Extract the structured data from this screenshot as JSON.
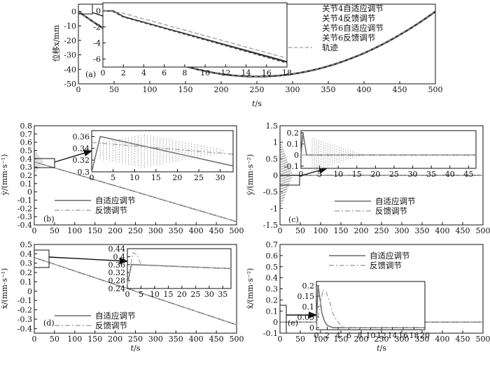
{
  "chart_data": [
    {
      "type": "line",
      "panel_label": "(a)",
      "xlabel_var": "t",
      "xlabel_unit": "/s",
      "ylabel": "位移x/mm",
      "xlim": [
        0,
        500
      ],
      "ylim": [
        -50,
        5
      ],
      "xticks": [
        0,
        50,
        100,
        150,
        200,
        250,
        300,
        350,
        400,
        450,
        500
      ],
      "yticks": [
        0,
        -10,
        -20,
        -30,
        -40,
        -50
      ],
      "legend": [
        "关节4自适应调节",
        "关节4反馈调节",
        "关节6自适应调节",
        "关节6反馈调节",
        "轨迹"
      ],
      "series": [
        {
          "name": "轨迹",
          "x": [
            0,
            25,
            50,
            75,
            100,
            125,
            150,
            175,
            200,
            225,
            250,
            275,
            300,
            325,
            350,
            375,
            400,
            425,
            450,
            475,
            500
          ],
          "values": [
            0,
            -8.55,
            -16.2,
            -22.95,
            -28.8,
            -33.75,
            -37.8,
            -40.95,
            -43.2,
            -44.55,
            -45,
            -44.55,
            -43.2,
            -40.95,
            -37.8,
            -33.75,
            -28.8,
            -22.95,
            -16.2,
            -8.55,
            0
          ]
        }
      ],
      "inset": {
        "xlim": [
          0,
          18
        ],
        "ylim": [
          -7,
          1
        ],
        "xticks": [
          0,
          2,
          4,
          6,
          8,
          10,
          12,
          14,
          16,
          18
        ],
        "yticks": [
          0,
          -2,
          -4,
          -6
        ],
        "series": [
          {
            "name": "关节4自适应调节",
            "x": [
              0,
              1,
              2,
              18
            ],
            "values": [
              0,
              0,
              -0.7,
              -6.4
            ]
          },
          {
            "name": "关节4反馈调节",
            "x": [
              0,
              1,
              2,
              18
            ],
            "values": [
              0,
              -0.1,
              -0.75,
              -6.5
            ]
          },
          {
            "name": "关节6自适应调节",
            "x": [
              0,
              1,
              2,
              18
            ],
            "values": [
              0,
              0,
              -0.72,
              -6.3
            ]
          },
          {
            "name": "关节6反馈调节",
            "x": [
              0,
              1,
              2,
              18
            ],
            "values": [
              0,
              -0.1,
              -0.78,
              -6.45
            ]
          },
          {
            "name": "轨迹",
            "x": [
              0,
              2,
              18
            ],
            "values": [
              0.1,
              -0.3,
              -5.9
            ]
          }
        ]
      }
    },
    {
      "type": "line",
      "panel_label": "(b)",
      "xlabel_var": "",
      "xlabel_unit": "",
      "ylabel": "ẏ/(mm·s⁻¹)",
      "xlim": [
        0,
        500
      ],
      "ylim": [
        -0.4,
        0.8
      ],
      "xticks": [
        0,
        50,
        100,
        150,
        200,
        250,
        300,
        350,
        400,
        450,
        500
      ],
      "yticks": [
        0.8,
        0.7,
        0.6,
        0.5,
        0.4,
        0.3,
        0.2,
        0.1,
        0,
        -0.1,
        -0.2,
        -0.3,
        -0.4
      ],
      "legend": [
        "自适应调节",
        "反馈调节"
      ],
      "series": [
        {
          "name": "自适应调节",
          "x": [
            0,
            2,
            500
          ],
          "values": [
            0.36,
            0.36,
            -0.36
          ]
        },
        {
          "name": "反馈调节",
          "x": [
            0,
            2,
            500
          ],
          "values": [
            0.36,
            0.36,
            -0.36
          ]
        }
      ],
      "inset": {
        "xlim": [
          0,
          33
        ],
        "ylim": [
          0.3,
          0.37
        ],
        "xticks": [
          0,
          5,
          10,
          15,
          20,
          25,
          30
        ],
        "yticks": [
          0.36,
          0.34,
          0.32,
          0.3
        ],
        "series": [
          {
            "name": "自适应调节",
            "x": [
              0,
              2,
              33
            ],
            "values": [
              0.3,
              0.36,
              0.31
            ]
          },
          {
            "name": "反馈调节",
            "x": [
              0,
              33
            ],
            "values": [
              0.35,
              0.33
            ]
          }
        ]
      }
    },
    {
      "type": "line",
      "panel_label": "(c)",
      "xlabel_var": "",
      "xlabel_unit": "",
      "ylabel": "ÿ/(mm·s⁻²)",
      "xlim": [
        0,
        500
      ],
      "ylim": [
        -1.5,
        1.5
      ],
      "xticks": [
        0,
        50,
        100,
        150,
        200,
        250,
        300,
        350,
        400,
        450,
        500
      ],
      "yticks": [
        1.5,
        1.0,
        0.5,
        0,
        -0.5,
        -1.0,
        -1.5
      ],
      "legend": [
        "自适应调节",
        "反馈调节"
      ],
      "series": [
        {
          "name": "自适应调节",
          "x": [
            0,
            500
          ],
          "values": [
            0,
            0
          ]
        },
        {
          "name": "反馈调节",
          "x": [
            0,
            500
          ],
          "values": [
            0,
            0
          ]
        }
      ],
      "inset": {
        "xlim": [
          0,
          47
        ],
        "ylim": [
          -0.12,
          0.22
        ],
        "xticks": [
          0,
          5,
          10,
          15,
          20,
          25,
          30,
          35,
          40,
          45
        ],
        "yticks": [
          0.2,
          0.1,
          0,
          -0.1
        ],
        "series": [
          {
            "name": "自适应调节",
            "x": [
              0,
              0.5,
              1.5,
              47
            ],
            "values": [
              0,
              0.2,
              0,
              0
            ]
          },
          {
            "name": "反馈调节",
            "x": [
              0,
              47
            ],
            "values": [
              0,
              0
            ]
          }
        ]
      }
    },
    {
      "type": "line",
      "panel_label": "(d)",
      "xlabel_var": "t",
      "xlabel_unit": "/s",
      "ylabel": "ẋ/(mm·s⁻¹)",
      "xlim": [
        0,
        500
      ],
      "ylim": [
        -0.45,
        0.5
      ],
      "xticks": [
        0,
        50,
        100,
        150,
        200,
        250,
        300,
        350,
        400,
        450,
        500
      ],
      "yticks": [
        0.5,
        0.4,
        0.3,
        0.2,
        0.1,
        0,
        -0.1,
        -0.2,
        -0.3,
        -0.4
      ],
      "legend": [
        "自适应调节",
        "反馈调节"
      ],
      "series": [
        {
          "name": "自适应调节",
          "x": [
            0,
            500
          ],
          "values": [
            0.36,
            -0.36
          ]
        },
        {
          "name": "反馈调节",
          "x": [
            0,
            500
          ],
          "values": [
            0.36,
            -0.36
          ]
        }
      ],
      "inset": {
        "xlim": [
          0,
          38
        ],
        "ylim": [
          0.24,
          0.44
        ],
        "xticks": [
          0,
          5,
          10,
          15,
          20,
          25,
          30,
          35
        ],
        "yticks": [
          0.44,
          0.4,
          0.36,
          0.32,
          0.28,
          0.24
        ],
        "series": [
          {
            "name": "自适应调节",
            "x": [
              0,
              1.5,
              38
            ],
            "values": [
              0.26,
              0.36,
              0.34
            ]
          },
          {
            "name": "反馈调节",
            "x": [
              0,
              2,
              3.5,
              5,
              38
            ],
            "values": [
              0.26,
              0.42,
              0.41,
              0.36,
              0.34
            ]
          }
        ]
      }
    },
    {
      "type": "line",
      "panel_label": "(e)",
      "xlabel_var": "t",
      "xlabel_unit": "/s",
      "ylabel": "ẍ/(mm·s⁻²)",
      "xlim": [
        0,
        500
      ],
      "ylim": [
        -0.1,
        0.7
      ],
      "xticks": [
        0,
        50,
        100,
        150,
        200,
        250,
        300,
        350,
        400,
        450,
        500
      ],
      "yticks": [
        0.7,
        0.6,
        0.5,
        0.4,
        0.3,
        0.2,
        0.1,
        0,
        -0.1
      ],
      "legend": [
        "自适应调节",
        "反馈调节"
      ],
      "series": [
        {
          "name": "自适应调节",
          "x": [
            0,
            500
          ],
          "values": [
            0,
            0
          ]
        },
        {
          "name": "反馈调节",
          "x": [
            0,
            500
          ],
          "values": [
            0,
            0
          ]
        }
      ],
      "inset": {
        "xlim": [
          0,
          20
        ],
        "ylim": [
          -0.01,
          0.22
        ],
        "xticks": [
          0,
          2,
          4,
          6,
          8,
          10,
          12,
          14,
          16,
          18,
          20
        ],
        "yticks": [
          0.2,
          0.15,
          0.1,
          0.05,
          0
        ],
        "series": [
          {
            "name": "自适应调节",
            "x": [
              0,
              0.3,
              0.6,
              1,
              1.5,
              2,
              3,
              20
            ],
            "values": [
              0,
              0.2,
              0.15,
              0.07,
              0.03,
              0.01,
              0,
              0
            ]
          },
          {
            "name": "反馈调节",
            "x": [
              0,
              0.5,
              1.2,
              1.8,
              2.5,
              3,
              3.6,
              4.2,
              5,
              20
            ],
            "values": [
              0,
              0.08,
              0.18,
              0.17,
              0.12,
              0.07,
              0.04,
              0.02,
              0,
              0
            ]
          }
        ]
      }
    }
  ]
}
